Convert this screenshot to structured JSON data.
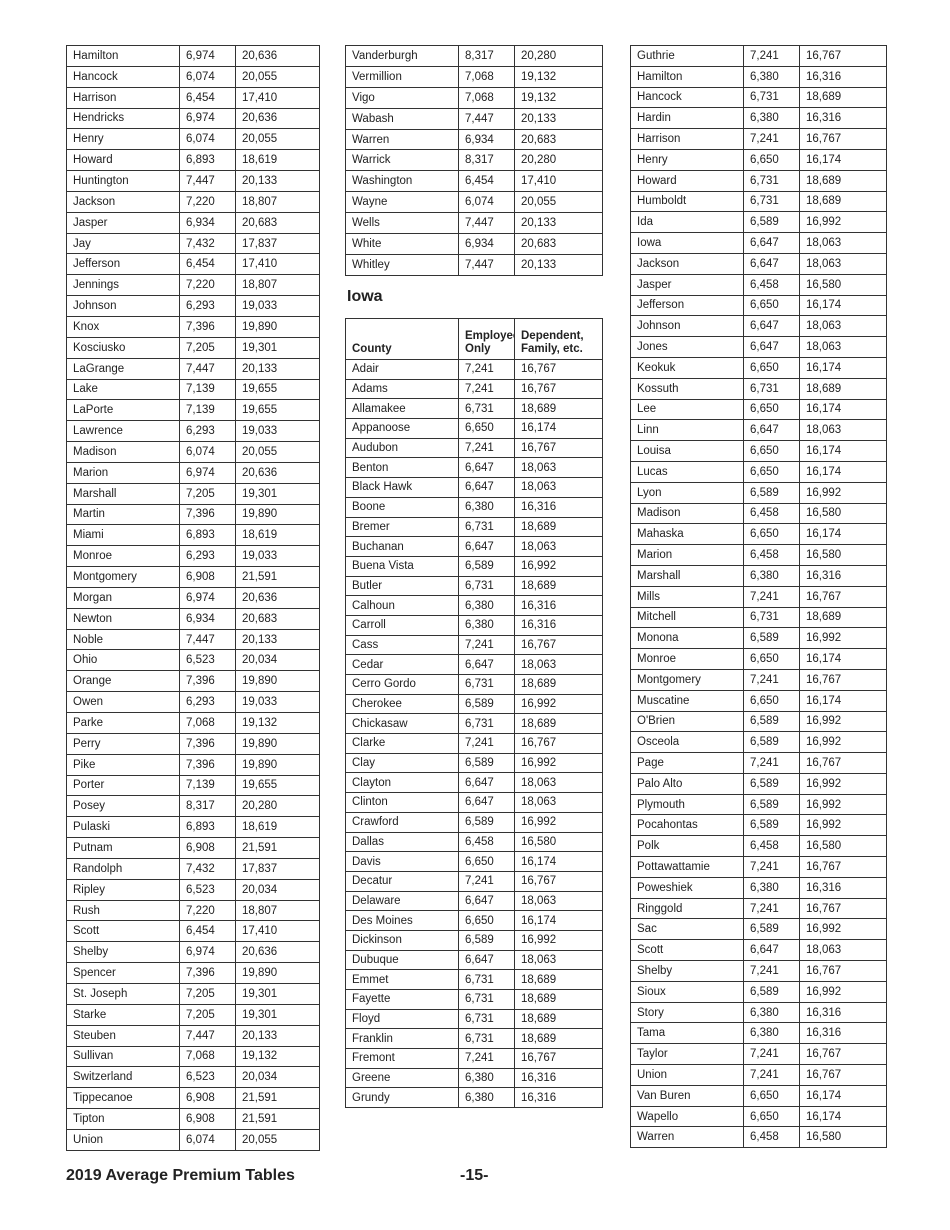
{
  "indiana_continued": {
    "left_rows": [
      [
        "Hamilton",
        "6,974",
        "20,636"
      ],
      [
        "Hancock",
        "6,074",
        "20,055"
      ],
      [
        "Harrison",
        "6,454",
        "17,410"
      ],
      [
        "Hendricks",
        "6,974",
        "20,636"
      ],
      [
        "Henry",
        "6,074",
        "20,055"
      ],
      [
        "Howard",
        "6,893",
        "18,619"
      ],
      [
        "Huntington",
        "7,447",
        "20,133"
      ],
      [
        "Jackson",
        "7,220",
        "18,807"
      ],
      [
        "Jasper",
        "6,934",
        "20,683"
      ],
      [
        "Jay",
        "7,432",
        "17,837"
      ],
      [
        "Jefferson",
        "6,454",
        "17,410"
      ],
      [
        "Jennings",
        "7,220",
        "18,807"
      ],
      [
        "Johnson",
        "6,293",
        "19,033"
      ],
      [
        "Knox",
        "7,396",
        "19,890"
      ],
      [
        "Kosciusko",
        "7,205",
        "19,301"
      ],
      [
        "LaGrange",
        "7,447",
        "20,133"
      ],
      [
        "Lake",
        "7,139",
        "19,655"
      ],
      [
        "LaPorte",
        "7,139",
        "19,655"
      ],
      [
        "Lawrence",
        "6,293",
        "19,033"
      ],
      [
        "Madison",
        "6,074",
        "20,055"
      ],
      [
        "Marion",
        "6,974",
        "20,636"
      ],
      [
        "Marshall",
        "7,205",
        "19,301"
      ],
      [
        "Martin",
        "7,396",
        "19,890"
      ],
      [
        "Miami",
        "6,893",
        "18,619"
      ],
      [
        "Monroe",
        "6,293",
        "19,033"
      ],
      [
        "Montgomery",
        "6,908",
        "21,591"
      ],
      [
        "Morgan",
        "6,974",
        "20,636"
      ],
      [
        "Newton",
        "6,934",
        "20,683"
      ],
      [
        "Noble",
        "7,447",
        "20,133"
      ],
      [
        "Ohio",
        "6,523",
        "20,034"
      ],
      [
        "Orange",
        "7,396",
        "19,890"
      ],
      [
        "Owen",
        "6,293",
        "19,033"
      ],
      [
        "Parke",
        "7,068",
        "19,132"
      ],
      [
        "Perry",
        "7,396",
        "19,890"
      ],
      [
        "Pike",
        "7,396",
        "19,890"
      ],
      [
        "Porter",
        "7,139",
        "19,655"
      ],
      [
        "Posey",
        "8,317",
        "20,280"
      ],
      [
        "Pulaski",
        "6,893",
        "18,619"
      ],
      [
        "Putnam",
        "6,908",
        "21,591"
      ],
      [
        "Randolph",
        "7,432",
        "17,837"
      ],
      [
        "Ripley",
        "6,523",
        "20,034"
      ],
      [
        "Rush",
        "7,220",
        "18,807"
      ],
      [
        "Scott",
        "6,454",
        "17,410"
      ],
      [
        "Shelby",
        "6,974",
        "20,636"
      ],
      [
        "Spencer",
        "7,396",
        "19,890"
      ],
      [
        "St. Joseph",
        "7,205",
        "19,301"
      ],
      [
        "Starke",
        "7,205",
        "19,301"
      ],
      [
        "Steuben",
        "7,447",
        "20,133"
      ],
      [
        "Sullivan",
        "7,068",
        "19,132"
      ],
      [
        "Switzerland",
        "6,523",
        "20,034"
      ],
      [
        "Tippecanoe",
        "6,908",
        "21,591"
      ],
      [
        "Tipton",
        "6,908",
        "21,591"
      ],
      [
        "Union",
        "6,074",
        "20,055"
      ]
    ],
    "mid_rows": [
      [
        "Vanderburgh",
        "8,317",
        "20,280"
      ],
      [
        "Vermillion",
        "7,068",
        "19,132"
      ],
      [
        "Vigo",
        "7,068",
        "19,132"
      ],
      [
        "Wabash",
        "7,447",
        "20,133"
      ],
      [
        "Warren",
        "6,934",
        "20,683"
      ],
      [
        "Warrick",
        "8,317",
        "20,280"
      ],
      [
        "Washington",
        "6,454",
        "17,410"
      ],
      [
        "Wayne",
        "6,074",
        "20,055"
      ],
      [
        "Wells",
        "7,447",
        "20,133"
      ],
      [
        "White",
        "6,934",
        "20,683"
      ],
      [
        "Whitley",
        "7,447",
        "20,133"
      ]
    ]
  },
  "iowa": {
    "heading": "Iowa",
    "headers": [
      "County",
      "Employee-Only",
      "Dependent, Family, etc."
    ],
    "rows_a": [
      [
        "Adair",
        "7,241",
        "16,767"
      ],
      [
        "Adams",
        "7,241",
        "16,767"
      ],
      [
        "Allamakee",
        "6,731",
        "18,689"
      ],
      [
        "Appanoose",
        "6,650",
        "16,174"
      ],
      [
        "Audubon",
        "7,241",
        "16,767"
      ],
      [
        "Benton",
        "6,647",
        "18,063"
      ],
      [
        "Black Hawk",
        "6,647",
        "18,063"
      ],
      [
        "Boone",
        "6,380",
        "16,316"
      ],
      [
        "Bremer",
        "6,731",
        "18,689"
      ],
      [
        "Buchanan",
        "6,647",
        "18,063"
      ],
      [
        "Buena Vista",
        "6,589",
        "16,992"
      ],
      [
        "Butler",
        "6,731",
        "18,689"
      ],
      [
        "Calhoun",
        "6,380",
        "16,316"
      ],
      [
        "Carroll",
        "6,380",
        "16,316"
      ],
      [
        "Cass",
        "7,241",
        "16,767"
      ],
      [
        "Cedar",
        "6,647",
        "18,063"
      ],
      [
        "Cerro Gordo",
        "6,731",
        "18,689"
      ],
      [
        "Cherokee",
        "6,589",
        "16,992"
      ],
      [
        "Chickasaw",
        "6,731",
        "18,689"
      ],
      [
        "Clarke",
        "7,241",
        "16,767"
      ],
      [
        "Clay",
        "6,589",
        "16,992"
      ],
      [
        "Clayton",
        "6,647",
        "18,063"
      ],
      [
        "Clinton",
        "6,647",
        "18,063"
      ],
      [
        "Crawford",
        "6,589",
        "16,992"
      ],
      [
        "Dallas",
        "6,458",
        "16,580"
      ],
      [
        "Davis",
        "6,650",
        "16,174"
      ],
      [
        "Decatur",
        "7,241",
        "16,767"
      ],
      [
        "Delaware",
        "6,647",
        "18,063"
      ],
      [
        "Des Moines",
        "6,650",
        "16,174"
      ],
      [
        "Dickinson",
        "6,589",
        "16,992"
      ],
      [
        "Dubuque",
        "6,647",
        "18,063"
      ],
      [
        "Emmet",
        "6,731",
        "18,689"
      ],
      [
        "Fayette",
        "6,731",
        "18,689"
      ],
      [
        "Floyd",
        "6,731",
        "18,689"
      ],
      [
        "Franklin",
        "6,731",
        "18,689"
      ],
      [
        "Fremont",
        "7,241",
        "16,767"
      ],
      [
        "Greene",
        "6,380",
        "16,316"
      ],
      [
        "Grundy",
        "6,380",
        "16,316"
      ]
    ],
    "rows_b": [
      [
        "Guthrie",
        "7,241",
        "16,767"
      ],
      [
        "Hamilton",
        "6,380",
        "16,316"
      ],
      [
        "Hancock",
        "6,731",
        "18,689"
      ],
      [
        "Hardin",
        "6,380",
        "16,316"
      ],
      [
        "Harrison",
        "7,241",
        "16,767"
      ],
      [
        "Henry",
        "6,650",
        "16,174"
      ],
      [
        "Howard",
        "6,731",
        "18,689"
      ],
      [
        "Humboldt",
        "6,731",
        "18,689"
      ],
      [
        "Ida",
        "6,589",
        "16,992"
      ],
      [
        "Iowa",
        "6,647",
        "18,063"
      ],
      [
        "Jackson",
        "6,647",
        "18,063"
      ],
      [
        "Jasper",
        "6,458",
        "16,580"
      ],
      [
        "Jefferson",
        "6,650",
        "16,174"
      ],
      [
        "Johnson",
        "6,647",
        "18,063"
      ],
      [
        "Jones",
        "6,647",
        "18,063"
      ],
      [
        "Keokuk",
        "6,650",
        "16,174"
      ],
      [
        "Kossuth",
        "6,731",
        "18,689"
      ],
      [
        "Lee",
        "6,650",
        "16,174"
      ],
      [
        "Linn",
        "6,647",
        "18,063"
      ],
      [
        "Louisa",
        "6,650",
        "16,174"
      ],
      [
        "Lucas",
        "6,650",
        "16,174"
      ],
      [
        "Lyon",
        "6,589",
        "16,992"
      ],
      [
        "Madison",
        "6,458",
        "16,580"
      ],
      [
        "Mahaska",
        "6,650",
        "16,174"
      ],
      [
        "Marion",
        "6,458",
        "16,580"
      ],
      [
        "Marshall",
        "6,380",
        "16,316"
      ],
      [
        "Mills",
        "7,241",
        "16,767"
      ],
      [
        "Mitchell",
        "6,731",
        "18,689"
      ],
      [
        "Monona",
        "6,589",
        "16,992"
      ],
      [
        "Monroe",
        "6,650",
        "16,174"
      ],
      [
        "Montgomery",
        "7,241",
        "16,767"
      ],
      [
        "Muscatine",
        "6,650",
        "16,174"
      ],
      [
        "O'Brien",
        "6,589",
        "16,992"
      ],
      [
        "Osceola",
        "6,589",
        "16,992"
      ],
      [
        "Page",
        "7,241",
        "16,767"
      ],
      [
        "Palo Alto",
        "6,589",
        "16,992"
      ],
      [
        "Plymouth",
        "6,589",
        "16,992"
      ],
      [
        "Pocahontas",
        "6,589",
        "16,992"
      ],
      [
        "Polk",
        "6,458",
        "16,580"
      ],
      [
        "Pottawattamie",
        "7,241",
        "16,767"
      ],
      [
        "Poweshiek",
        "6,380",
        "16,316"
      ],
      [
        "Ringgold",
        "7,241",
        "16,767"
      ],
      [
        "Sac",
        "6,589",
        "16,992"
      ],
      [
        "Scott",
        "6,647",
        "18,063"
      ],
      [
        "Shelby",
        "7,241",
        "16,767"
      ],
      [
        "Sioux",
        "6,589",
        "16,992"
      ],
      [
        "Story",
        "6,380",
        "16,316"
      ],
      [
        "Tama",
        "6,380",
        "16,316"
      ],
      [
        "Taylor",
        "7,241",
        "16,767"
      ],
      [
        "Union",
        "7,241",
        "16,767"
      ],
      [
        "Van Buren",
        "6,650",
        "16,174"
      ],
      [
        "Wapello",
        "6,650",
        "16,174"
      ],
      [
        "Warren",
        "6,458",
        "16,580"
      ]
    ]
  },
  "footer": {
    "title": "2019 Average Premium Tables",
    "page": "-15-"
  }
}
